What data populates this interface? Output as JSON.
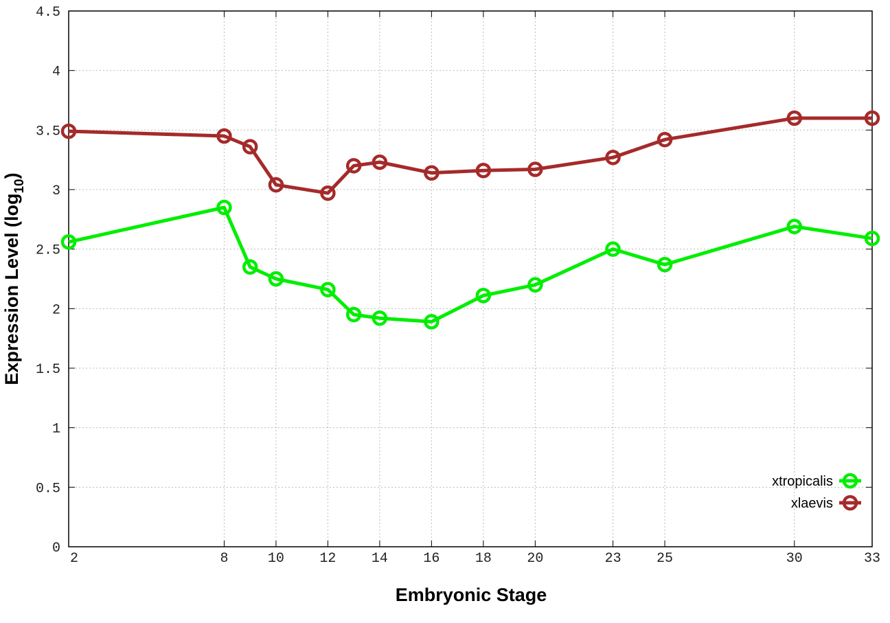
{
  "chart_data": {
    "type": "line",
    "xlabel": "Embryonic Stage",
    "ylabel": "Expression Level (log",
    "ylabel_sub": "10",
    "ylabel_close": ")",
    "x": [
      2,
      8,
      9,
      10,
      12,
      13,
      14,
      16,
      18,
      20,
      23,
      25,
      30,
      33
    ],
    "xticks": [
      "2",
      "8",
      "10",
      "12",
      "14",
      "16",
      "18",
      "20",
      "23",
      "25",
      "30",
      "33"
    ],
    "yticks": [
      "0",
      "0.5",
      "1",
      "1.5",
      "2",
      "2.5",
      "3",
      "3.5",
      "4",
      "4.5"
    ],
    "xlim": [
      2,
      33
    ],
    "ylim": [
      0,
      4.5
    ],
    "grid": true,
    "legend_position": "bottom-right",
    "series": [
      {
        "name": "xtropicalis",
        "color": "#00ee00",
        "values": [
          2.56,
          2.85,
          2.35,
          2.25,
          2.16,
          1.95,
          1.92,
          1.89,
          2.11,
          2.2,
          2.5,
          2.37,
          2.69,
          2.59
        ]
      },
      {
        "name": "xlaevis",
        "color": "#a52a2a",
        "values": [
          3.49,
          3.45,
          3.36,
          3.04,
          2.97,
          3.2,
          3.23,
          3.14,
          3.16,
          3.17,
          3.27,
          3.42,
          3.6,
          3.6
        ]
      }
    ]
  }
}
